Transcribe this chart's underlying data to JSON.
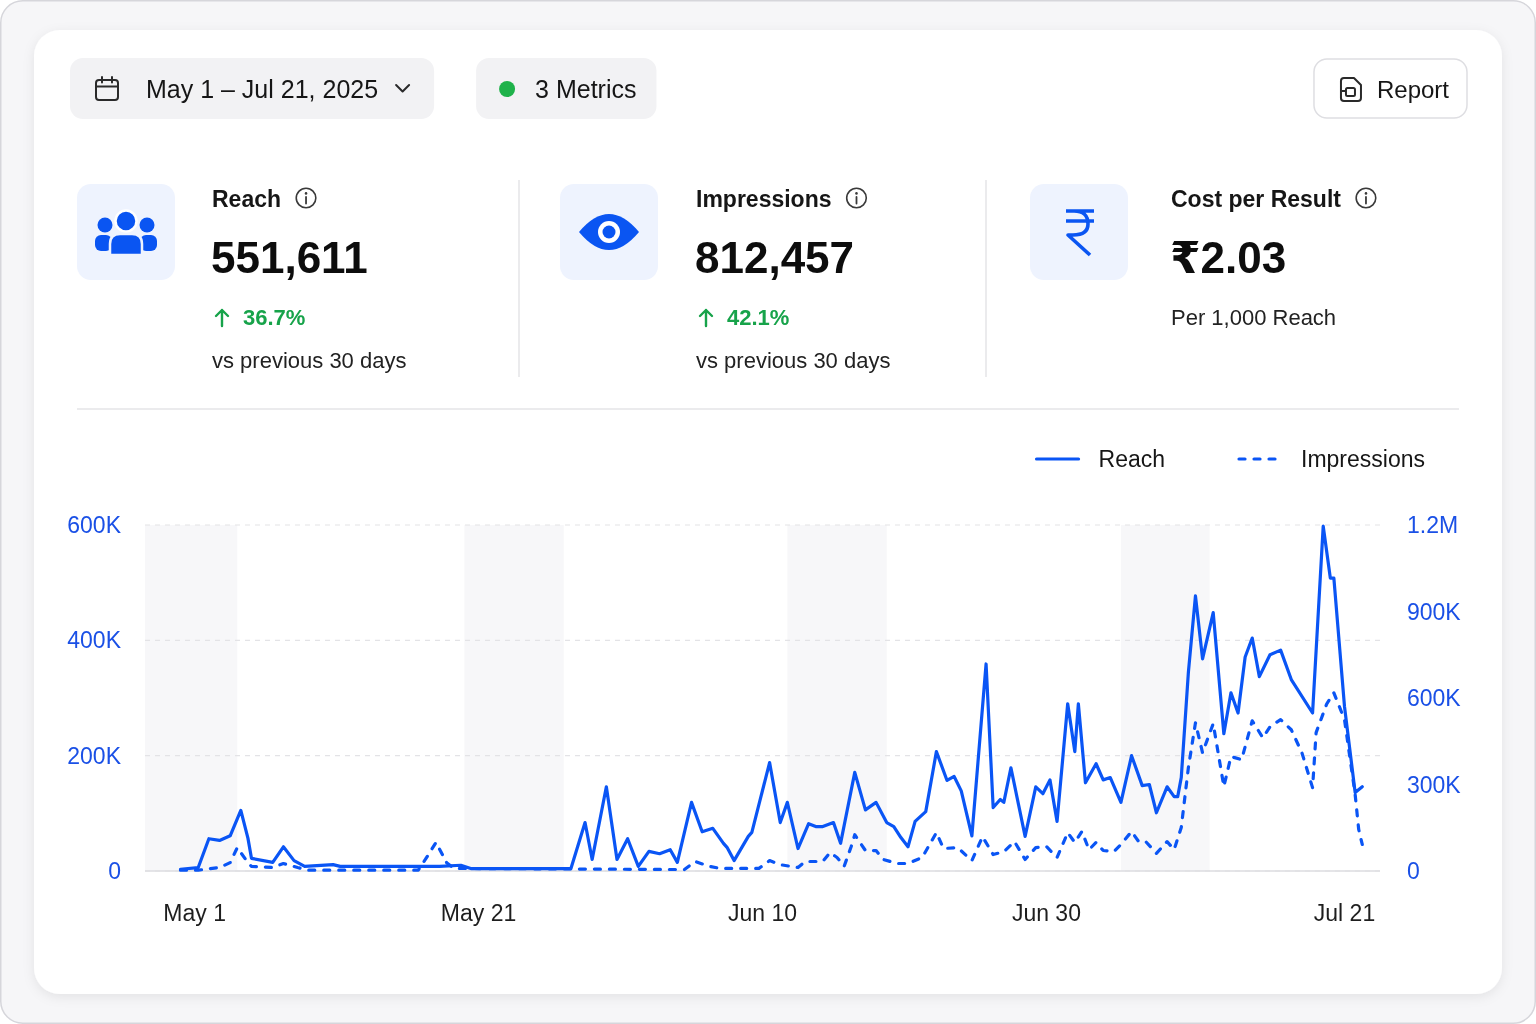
{
  "chart_data": [
    {
      "type": "other",
      "annotations": [
        "May 1 – Jul 21, 2025",
        "3 Metrics",
        "Report"
      ]
    },
    {
      "type": "other",
      "title": "Reach",
      "annotations": [
        "551,611",
        "36.7%"
      ],
      "subtitle": "vs previous 30 days"
    },
    {
      "type": "other",
      "title": "Impressions",
      "annotations": [
        "812,457",
        "42.1%"
      ],
      "subtitle": "vs previous 30 days"
    },
    {
      "type": "other",
      "title": "Cost per Result",
      "annotations": [
        "₹2.03"
      ],
      "subtitle": "Per 1,000 Reach"
    },
    {
      "type": "line",
      "xlim": [
        "2025-04-27T12:00",
        "2025-07-23T12:00"
      ],
      "xticks": [
        {
          "value": "2025-05-01",
          "label": "May 1"
        },
        {
          "value": "2025-05-21",
          "label": "May 21"
        },
        {
          "value": "2025-06-10",
          "label": "Jun 10"
        },
        {
          "value": "2025-06-30",
          "label": "Jun 30"
        },
        {
          "value": "2025-07-21",
          "label": "Jul 21"
        }
      ],
      "ylim": [
        0,
        600000
      ],
      "yticks": [
        0,
        {
          "value": 200000,
          "label": "200K"
        },
        {
          "value": 400000,
          "label": "400K"
        },
        {
          "value": 600000,
          "label": "600K"
        }
      ],
      "y2lim": [
        0,
        1200000
      ],
      "y2ticks": [
        0,
        {
          "value": 300000,
          "label": "300K"
        },
        {
          "value": 600000,
          "label": "600K"
        },
        {
          "value": 900000,
          "label": "900K"
        },
        {
          "value": 1200000,
          "label": "1.2M"
        }
      ],
      "grid": "y",
      "legend": "top right",
      "bands": [
        {
          "axis": "x",
          "from": "2025-04-27T12:00",
          "to": "2025-05-04T00:00",
          "color": "#f7f7f9"
        },
        {
          "axis": "x",
          "from": "2025-05-20T00:00",
          "to": "2025-05-27T00:00",
          "color": "#f7f7f9"
        },
        {
          "axis": "x",
          "from": "2025-06-11T18:00",
          "to": "2025-06-18T18:00",
          "color": "#f7f7f9"
        },
        {
          "axis": "x",
          "from": "2025-07-05T06:00",
          "to": "2025-07-11T12:00",
          "color": "#f7f7f9"
        }
      ],
      "series": [
        {
          "name": "Reach",
          "color": "#0a55f5",
          "line_style": "solid",
          "x": [
            "2025-04-30T00:00",
            "2025-05-01T06:00",
            "2025-05-02T00:00",
            "2025-05-02T18:00",
            "2025-05-03T12:00",
            "2025-05-04T06:00",
            "2025-05-04T18:00",
            "2025-05-05T00:00",
            "2025-05-06T12:00",
            "2025-05-07T06:00",
            "2025-05-08T00:00",
            "2025-05-08T18:00",
            "2025-05-10T18:00",
            "2025-05-11T06:00",
            "2025-05-18T06:00",
            "2025-05-19T18:00",
            "2025-05-20T12:00",
            "2025-05-27T12:00",
            "2025-05-28T12:00",
            "2025-05-29T00:00",
            "2025-05-30T00:00",
            "2025-05-30T18:00",
            "2025-05-31T12:00",
            "2025-06-01T06:00",
            "2025-06-02T00:00",
            "2025-06-02T18:00",
            "2025-06-03T12:00",
            "2025-06-04T00:00",
            "2025-06-05T00:00",
            "2025-06-05T18:00",
            "2025-06-06T12:00",
            "2025-06-07T06:00",
            "2025-06-07T12:00",
            "2025-06-08T00:00",
            "2025-06-09T00:00",
            "2025-06-09T06:00",
            "2025-06-10T12:00",
            "2025-06-11T06:00",
            "2025-06-11T18:00",
            "2025-06-12T12:00",
            "2025-06-13T06:00",
            "2025-06-13T18:00",
            "2025-06-14T06:00",
            "2025-06-15T00:00",
            "2025-06-15T12:00",
            "2025-06-16T12:00",
            "2025-06-17T06:00",
            "2025-06-18T00:00",
            "2025-06-18T18:00",
            "2025-06-19T06:00",
            "2025-06-19T18:00",
            "2025-06-20T06:00",
            "2025-06-20T18:00",
            "2025-06-21T12:00",
            "2025-06-22T06:00",
            "2025-06-23T00:00",
            "2025-06-23T12:00",
            "2025-06-24T00:00",
            "2025-06-24T18:00",
            "2025-06-25T18:00",
            "2025-06-26T06:00",
            "2025-06-26T18:00",
            "2025-06-27T00:00",
            "2025-06-27T12:00",
            "2025-06-28T12:00",
            "2025-06-29T06:00",
            "2025-06-29T18:00",
            "2025-06-30T06:00",
            "2025-06-30T18:00",
            "2025-07-01T12:00",
            "2025-07-02T00:00",
            "2025-07-02T06:00",
            "2025-07-02T18:00",
            "2025-07-03T12:00",
            "2025-07-04T00:00",
            "2025-07-04T12:00",
            "2025-07-05T06:00",
            "2025-07-06T00:00",
            "2025-07-06T18:00",
            "2025-07-07T06:00",
            "2025-07-07T18:00",
            "2025-07-08T12:00",
            "2025-07-09T00:00",
            "2025-07-09T06:00",
            "2025-07-09T12:00",
            "2025-07-10T00:00",
            "2025-07-10T12:00",
            "2025-07-11T00:00",
            "2025-07-11T18:00",
            "2025-07-12T12:00",
            "2025-07-13T00:00",
            "2025-07-13T12:00",
            "2025-07-14T00:00",
            "2025-07-14T12:00",
            "2025-07-15T00:00",
            "2025-07-15T18:00",
            "2025-07-16T12:00",
            "2025-07-17T06:00",
            "2025-07-18T18:00",
            "2025-07-19T12:00",
            "2025-07-20T00:00",
            "2025-07-20T06:00",
            "2025-07-21T00:00",
            "2025-07-21T18:00",
            "2025-07-22T06:00"
          ],
          "values": [
            3000,
            6000,
            56000,
            53000,
            61000,
            105000,
            57000,
            22000,
            15000,
            42000,
            18000,
            8000,
            11000,
            8000,
            8000,
            10000,
            4000,
            4000,
            84000,
            20000,
            146000,
            20000,
            56000,
            8000,
            34000,
            30000,
            37000,
            15000,
            119000,
            68000,
            74000,
            48000,
            41000,
            18000,
            60000,
            67000,
            188000,
            84000,
            119000,
            39000,
            82000,
            77000,
            77000,
            84000,
            48000,
            171000,
            106000,
            119000,
            84000,
            77000,
            58000,
            42000,
            86000,
            103000,
            207000,
            157000,
            164000,
            139000,
            61000,
            359000,
            110000,
            124000,
            119000,
            179000,
            60000,
            146000,
            134000,
            158000,
            86000,
            290000,
            207000,
            290000,
            153000,
            186000,
            158000,
            162000,
            119000,
            200000,
            148000,
            150000,
            101000,
            146000,
            129000,
            129000,
            162000,
            344000,
            477000,
            368000,
            448000,
            238000,
            309000,
            274000,
            371000,
            404000,
            337000,
            375000,
            383000,
            332000,
            274000,
            598000,
            508000,
            508000,
            285000,
            136000,
            146000
          ]
        },
        {
          "name": "Impressions",
          "color": "#0a55f5",
          "line_style": "dashed",
          "axis": "y2",
          "x": [
            "2025-04-30T00:00",
            "2025-05-01T06:00",
            "2025-05-02T18:00",
            "2025-05-03T12:00",
            "2025-05-04T00:00",
            "2025-05-04T18:00",
            "2025-05-05T00:00",
            "2025-05-06T12:00",
            "2025-05-07T06:00",
            "2025-05-08T06:00",
            "2025-05-09T00:00",
            "2025-05-16T18:00",
            "2025-05-17T06:00",
            "2025-05-18T00:00",
            "2025-05-18T18:00",
            "2025-05-19T06:00",
            "2025-06-04T12:00",
            "2025-06-05T06:00",
            "2025-06-06T06:00",
            "2025-06-07T00:00",
            "2025-06-09T18:00",
            "2025-06-10T12:00",
            "2025-06-11T06:00",
            "2025-06-12T12:00",
            "2025-06-13T00:00",
            "2025-06-14T06:00",
            "2025-06-14T18:00",
            "2025-06-15T06:00",
            "2025-06-15T18:00",
            "2025-06-16T06:00",
            "2025-06-16T12:00",
            "2025-06-17T06:00",
            "2025-06-18T00:00",
            "2025-06-18T12:00",
            "2025-06-19T12:00",
            "2025-06-20T06:00",
            "2025-06-21T06:00",
            "2025-06-22T06:00",
            "2025-06-22T18:00",
            "2025-06-23T18:00",
            "2025-06-24T18:00",
            "2025-06-25T12:00",
            "2025-06-26T06:00",
            "2025-06-27T00:00",
            "2025-06-27T18:00",
            "2025-06-28T12:00",
            "2025-06-29T06:00",
            "2025-06-30T00:00",
            "2025-06-30T18:00",
            "2025-07-01T12:00",
            "2025-07-02T00:00",
            "2025-07-02T12:00",
            "2025-07-03T00:00",
            "2025-07-03T12:00",
            "2025-07-04T00:00",
            "2025-07-04T18:00",
            "2025-07-05T06:00",
            "2025-07-06T00:00",
            "2025-07-06T12:00",
            "2025-07-07T00:00",
            "2025-07-07T18:00",
            "2025-07-08T12:00",
            "2025-07-09T00:00",
            "2025-07-09T12:00",
            "2025-07-10T00:00",
            "2025-07-10T12:00",
            "2025-07-11T00:00",
            "2025-07-11T18:00",
            "2025-07-12T12:00",
            "2025-07-13T00:00",
            "2025-07-13T18:00",
            "2025-07-14T12:00",
            "2025-07-15T06:00",
            "2025-07-15T18:00",
            "2025-07-16T12:00",
            "2025-07-17T06:00",
            "2025-07-18T00:00",
            "2025-07-18T18:00",
            "2025-07-19T00:00",
            "2025-07-19T18:00",
            "2025-07-20T06:00",
            "2025-07-21T00:00",
            "2025-07-21T18:00",
            "2025-07-22T00:00",
            "2025-07-22T06:00"
          ],
          "values": [
            3000,
            3000,
            12000,
            29000,
            81000,
            29000,
            16000,
            12000,
            26000,
            12000,
            3000,
            3000,
            40000,
            99000,
            29000,
            9000,
            5000,
            33000,
            16000,
            9000,
            9000,
            36000,
            22000,
            12000,
            33000,
            33000,
            64000,
            47000,
            16000,
            85000,
            126000,
            71000,
            71000,
            40000,
            26000,
            26000,
            47000,
            133000,
            78000,
            81000,
            36000,
            119000,
            57000,
            67000,
            102000,
            40000,
            81000,
            85000,
            47000,
            133000,
            99000,
            137000,
            74000,
            99000,
            71000,
            67000,
            92000,
            137000,
            102000,
            102000,
            61000,
            102000,
            74000,
            151000,
            358000,
            514000,
            410000,
            511000,
            293000,
            397000,
            386000,
            521000,
            462000,
            500000,
            525000,
            490000,
            410000,
            289000,
            480000,
            580000,
            618000,
            525000,
            265000,
            144000,
            92000
          ]
        }
      ]
    }
  ]
}
